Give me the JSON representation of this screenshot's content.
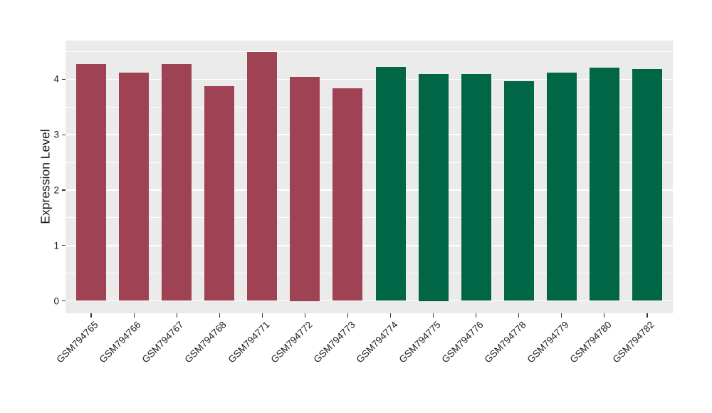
{
  "figure": {
    "background": "#FFFFFF",
    "panel_background": "#EBEBEB",
    "grid_color": "#FFFFFF",
    "axis_text_color": "#1A1A1A",
    "tick_mark_color": "#333333"
  },
  "chart_data": {
    "type": "bar",
    "title": "",
    "xlabel": "",
    "ylabel": "Expression Level",
    "legend": "none",
    "grid": "on",
    "categories": [
      "GSM794765",
      "GSM794766",
      "GSM794767",
      "GSM794768",
      "GSM794771",
      "GSM794772",
      "GSM794773",
      "GSM794774",
      "GSM794775",
      "GSM794776",
      "GSM794778",
      "GSM794779",
      "GSM794780",
      "GSM794782"
    ],
    "values": [
      4.28,
      4.12,
      4.28,
      3.88,
      4.49,
      4.05,
      3.84,
      4.23,
      4.09,
      4.1,
      3.97,
      4.12,
      4.21,
      4.19
    ],
    "bar_colors": [
      "#9E4254",
      "#9E4254",
      "#9E4254",
      "#9E4254",
      "#9E4254",
      "#9E4254",
      "#9E4254",
      "#006646",
      "#006646",
      "#006646",
      "#006646",
      "#006646",
      "#006646",
      "#006646"
    ],
    "group_colors": {
      "left_group": "#9E4254",
      "right_group": "#006646"
    },
    "yticks": [
      0,
      1,
      2,
      3,
      4
    ],
    "ytick_labels": [
      "0",
      "1",
      "2",
      "3",
      "4"
    ],
    "y_minor_gridlines": [
      0.5,
      1.5,
      2.5,
      3.5,
      4.5
    ],
    "ylim": [
      -0.225,
      4.7
    ],
    "bar_width_fraction": 0.7,
    "x_label_angle_deg": 45
  }
}
